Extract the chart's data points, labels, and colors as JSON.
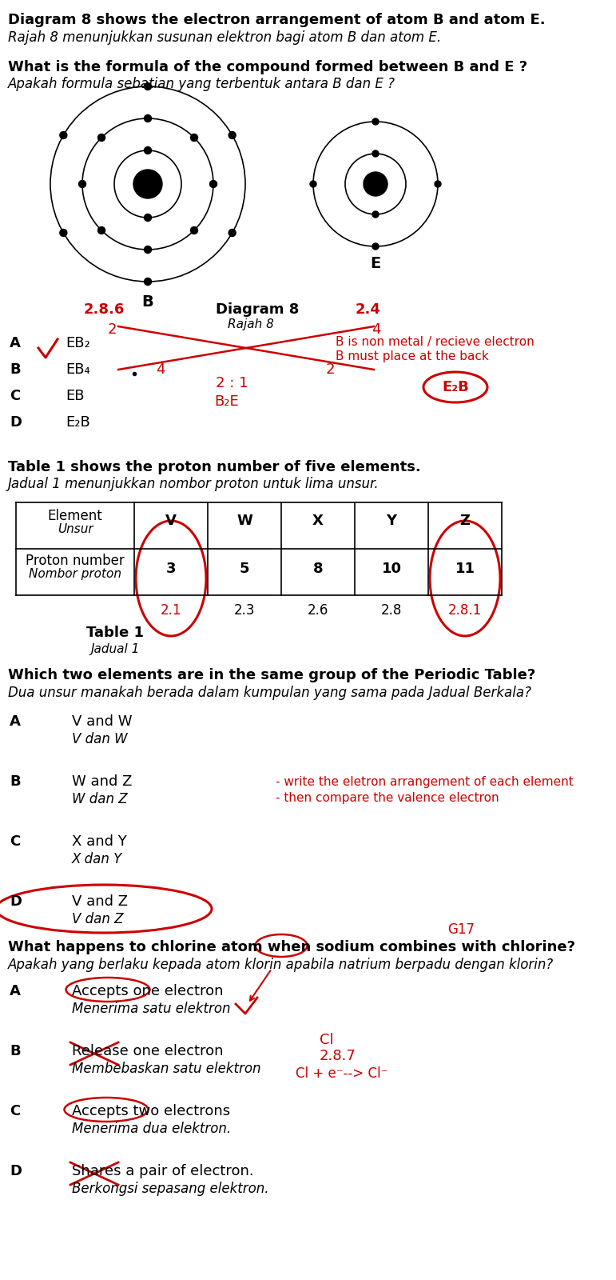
{
  "bg_color": "#ffffff",
  "title_q1_line1": "Diagram 8 shows the electron arrangement of atom B and atom E.",
  "title_q1_line2": "Rajah 8 menunjukkan susunan elektron bagi atom B dan atom E.",
  "q1_line3": "What is the formula of the compound formed between B and E ?",
  "q1_line4": "Apakah formula sebatian yang terbentuk antara B dan E ?",
  "atom_B_label": "B",
  "atom_E_label": "E",
  "atom_B_config": "2.8.6",
  "atom_E_config": "2.4",
  "diagram8_label": "Diagram 8",
  "rajah8_label": "Rajah 8",
  "B_config_sub": "2",
  "E_config_sub": "4",
  "answer_a_q1": "EB₂",
  "answer_b_q1": "EB₄",
  "answer_c_q1": "EB",
  "answer_d_q1": "E₂B",
  "note_q1_line1": "B is non metal / recieve electron",
  "note_q1_line2": "B must place at the back",
  "cross_label_4": "4",
  "cross_label_2": "2",
  "ratio_label": "2 : 1",
  "formula_label": "B₂E",
  "circled_formula": "E₂B",
  "table_title_line1": "Table 1 shows the proton number of five elements.",
  "table_title_line2": "Jadual 1 menunjukkan nombor proton untuk lima unsur.",
  "table_elements": [
    "V",
    "W",
    "X",
    "Y",
    "Z"
  ],
  "table_protons": [
    "3",
    "5",
    "8",
    "10",
    "11"
  ],
  "table_configs": [
    "2.1",
    "2.3",
    "2.6",
    "2.8",
    "2.8.1"
  ],
  "table1_label": "Table 1",
  "jadual1_label": "Jadual 1",
  "q2_line1": "Which two elements are in the same group of the Periodic Table?",
  "q2_line2": "Dua unsur manakah berada dalam kumpulan yang sama pada Jadual Berkala?",
  "answer_a_q2_line1": "V and W",
  "answer_a_q2_line2": "V dan W",
  "answer_b_q2_line1": "W and Z",
  "answer_b_q2_line2": "W dan Z",
  "answer_c_q2_line1": "X and Y",
  "answer_c_q2_line2": "X dan Y",
  "answer_d_q2_line1": "V and Z",
  "answer_d_q2_line2": "V dan Z",
  "note_q2_line1": "- write the eletron arrangement of each element",
  "note_q2_line2": "- then compare the valence electron",
  "q3_g17": "G17",
  "q3_line1": "What happens to chlorine atom when sodium combines with chlorine?",
  "q3_line2": "Apakah yang berlaku kepada atom klorin apabila natrium berpadu dengan klorin?",
  "answer_a_q3_line1": "Accepts one electron",
  "answer_a_q3_line2": "Menerima satu elektron",
  "answer_b_q3_line1": "Release one electron",
  "answer_b_q3_line2": "Membebaskan satu elektron",
  "answer_c_q3_line1": "Accepts two electrons",
  "answer_c_q3_line2": "Menerima dua elektron.",
  "answer_d_q3_line1": "Shares a pair of electron.",
  "answer_d_q3_line2": "Berkongsi sepasang elektron.",
  "note_q3_cl": "Cl",
  "note_q3_config": "2.8.7",
  "note_q3_eq": "Cl + e⁻--> Cl⁻",
  "red": "#cc0000",
  "black": "#000000"
}
